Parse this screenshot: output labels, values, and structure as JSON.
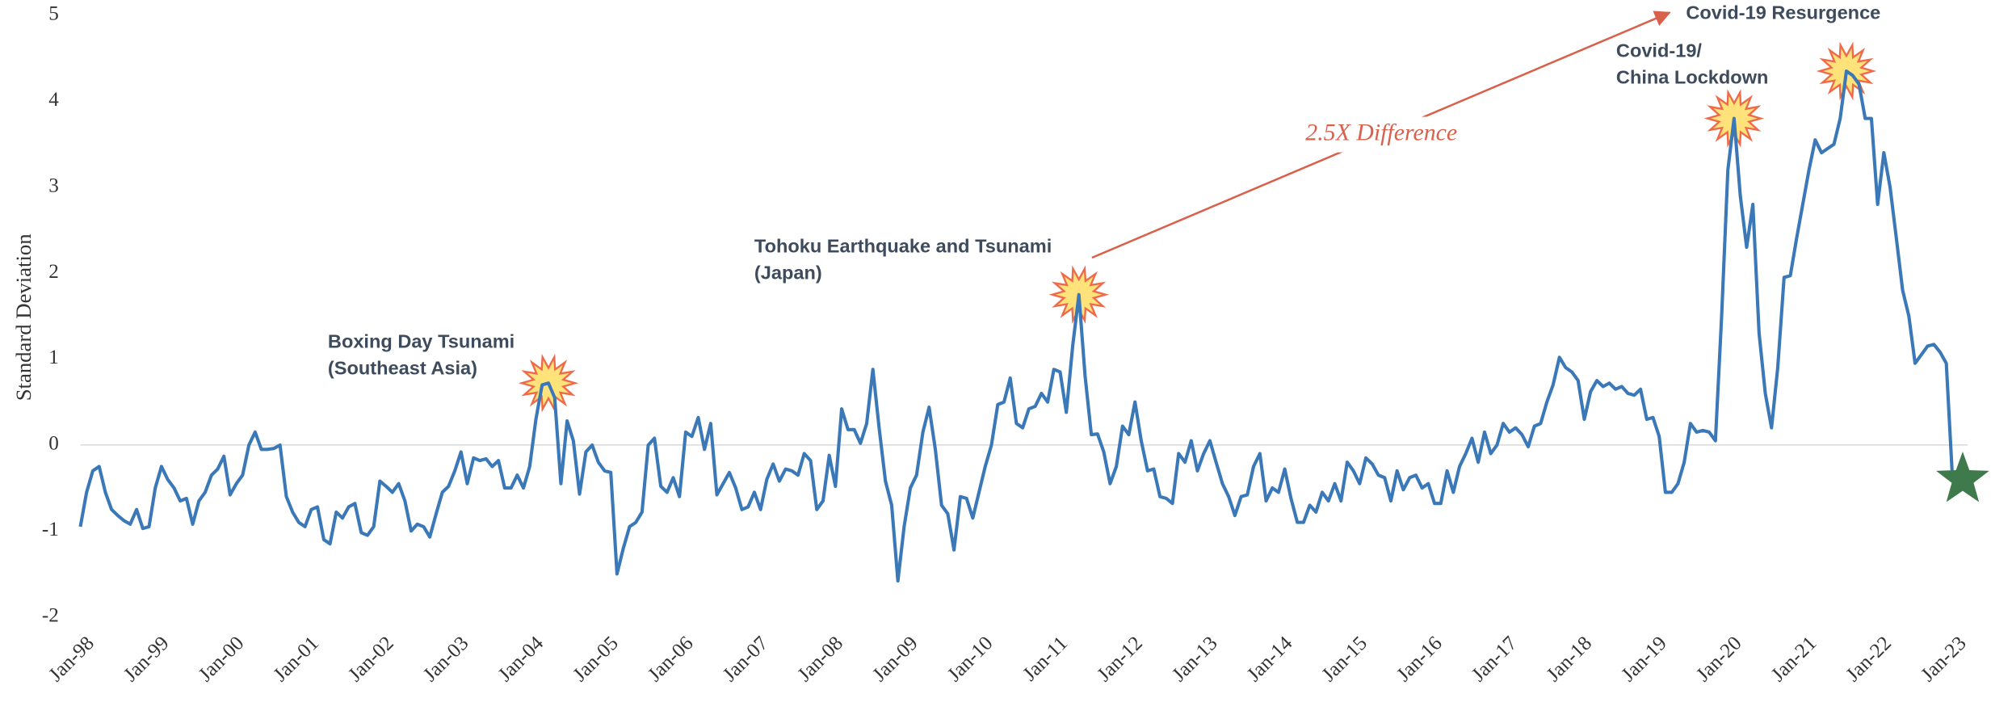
{
  "chart_data": {
    "type": "line",
    "y_label": "Standard Deviation",
    "ylim": [
      -2,
      5
    ],
    "yticks": [
      -2,
      -1,
      0,
      1,
      2,
      3,
      4,
      5
    ],
    "color": "#3a78b8",
    "annotations": [
      {
        "lines": [
          "Boxing Day Tsunami",
          "(Southeast Asia)"
        ]
      },
      {
        "lines": [
          "Tohoku Earthquake and Tsunami",
          "(Japan)"
        ]
      },
      {
        "lines": [
          "Covid-19/",
          "China Lockdown"
        ]
      },
      {
        "lines": [
          "Covid-19 Resurgence"
        ]
      },
      {
        "lines": [
          "2.5X Difference"
        ]
      }
    ],
    "categories": [
      "Jan-98",
      null,
      null,
      null,
      null,
      null,
      null,
      null,
      null,
      null,
      null,
      null,
      "Jan-99",
      null,
      null,
      null,
      null,
      null,
      null,
      null,
      null,
      null,
      null,
      null,
      "Jan-00",
      null,
      null,
      null,
      null,
      null,
      null,
      null,
      null,
      null,
      null,
      null,
      "Jan-01",
      null,
      null,
      null,
      null,
      null,
      null,
      null,
      null,
      null,
      null,
      null,
      "Jan-02",
      null,
      null,
      null,
      null,
      null,
      null,
      null,
      null,
      null,
      null,
      null,
      "Jan-03",
      null,
      null,
      null,
      null,
      null,
      null,
      null,
      null,
      null,
      null,
      null,
      "Jan-04",
      null,
      null,
      null,
      null,
      null,
      null,
      null,
      null,
      null,
      null,
      null,
      "Jan-05",
      null,
      null,
      null,
      null,
      null,
      null,
      null,
      null,
      null,
      null,
      null,
      "Jan-06",
      null,
      null,
      null,
      null,
      null,
      null,
      null,
      null,
      null,
      null,
      null,
      "Jan-07",
      null,
      null,
      null,
      null,
      null,
      null,
      null,
      null,
      null,
      null,
      null,
      "Jan-08",
      null,
      null,
      null,
      null,
      null,
      null,
      null,
      null,
      null,
      null,
      null,
      "Jan-09",
      null,
      null,
      null,
      null,
      null,
      null,
      null,
      null,
      null,
      null,
      null,
      "Jan-10",
      null,
      null,
      null,
      null,
      null,
      null,
      null,
      null,
      null,
      null,
      null,
      "Jan-11",
      null,
      null,
      null,
      null,
      null,
      null,
      null,
      null,
      null,
      null,
      null,
      "Jan-12",
      null,
      null,
      null,
      null,
      null,
      null,
      null,
      null,
      null,
      null,
      null,
      "Jan-13",
      null,
      null,
      null,
      null,
      null,
      null,
      null,
      null,
      null,
      null,
      null,
      "Jan-14",
      null,
      null,
      null,
      null,
      null,
      null,
      null,
      null,
      null,
      null,
      null,
      "Jan-15",
      null,
      null,
      null,
      null,
      null,
      null,
      null,
      null,
      null,
      null,
      null,
      "Jan-16",
      null,
      null,
      null,
      null,
      null,
      null,
      null,
      null,
      null,
      null,
      null,
      "Jan-17",
      null,
      null,
      null,
      null,
      null,
      null,
      null,
      null,
      null,
      null,
      null,
      "Jan-18",
      null,
      null,
      null,
      null,
      null,
      null,
      null,
      null,
      null,
      null,
      null,
      "Jan-19",
      null,
      null,
      null,
      null,
      null,
      null,
      null,
      null,
      null,
      null,
      null,
      "Jan-20",
      null,
      null,
      null,
      null,
      null,
      null,
      null,
      null,
      null,
      null,
      null,
      "Jan-21",
      null,
      null,
      null,
      null,
      null,
      null,
      null,
      null,
      null,
      null,
      null,
      "Jan-22",
      null,
      null,
      null,
      null,
      null,
      null,
      null,
      null,
      null,
      null,
      null,
      "Jan-23"
    ],
    "values": [
      -0.95,
      -0.55,
      -0.3,
      -0.25,
      -0.55,
      -0.75,
      -0.82,
      -0.88,
      -0.92,
      -0.75,
      -0.97,
      -0.95,
      -0.5,
      -0.25,
      -0.4,
      -0.5,
      -0.65,
      -0.62,
      -0.92,
      -0.65,
      -0.55,
      -0.35,
      -0.28,
      -0.13,
      -0.58,
      -0.45,
      -0.35,
      0.0,
      0.15,
      -0.05,
      -0.05,
      -0.04,
      0.0,
      -0.6,
      -0.78,
      -0.9,
      -0.95,
      -0.75,
      -0.72,
      -1.1,
      -1.15,
      -0.78,
      -0.85,
      -0.72,
      -0.68,
      -1.02,
      -1.05,
      -0.95,
      -0.42,
      -0.48,
      -0.55,
      -0.45,
      -0.65,
      -1.0,
      -0.92,
      -0.95,
      -1.07,
      -0.8,
      -0.55,
      -0.48,
      -0.3,
      -0.08,
      -0.45,
      -0.15,
      -0.18,
      -0.16,
      -0.25,
      -0.18,
      -0.5,
      -0.5,
      -0.35,
      -0.5,
      -0.25,
      0.3,
      0.7,
      0.72,
      0.55,
      -0.45,
      0.28,
      0.05,
      -0.57,
      -0.08,
      0.0,
      -0.2,
      -0.3,
      -0.32,
      -1.5,
      -1.2,
      -0.95,
      -0.9,
      -0.78,
      0.0,
      0.08,
      -0.48,
      -0.55,
      -0.38,
      -0.6,
      0.15,
      0.1,
      0.32,
      -0.05,
      0.25,
      -0.58,
      -0.45,
      -0.32,
      -0.5,
      -0.75,
      -0.72,
      -0.55,
      -0.75,
      -0.4,
      -0.22,
      -0.42,
      -0.28,
      -0.3,
      -0.35,
      -0.1,
      -0.18,
      -0.75,
      -0.65,
      -0.12,
      -0.48,
      0.42,
      0.18,
      0.18,
      0.02,
      0.25,
      0.88,
      0.2,
      -0.42,
      -0.7,
      -1.58,
      -0.95,
      -0.5,
      -0.35,
      0.15,
      0.44,
      -0.05,
      -0.7,
      -0.8,
      -1.22,
      -0.6,
      -0.62,
      -0.85,
      -0.55,
      -0.25,
      0.0,
      0.47,
      0.5,
      0.78,
      0.25,
      0.2,
      0.42,
      0.45,
      0.6,
      0.5,
      0.88,
      0.85,
      0.38,
      1.15,
      1.75,
      0.8,
      0.12,
      0.13,
      -0.08,
      -0.45,
      -0.25,
      0.22,
      0.12,
      0.5,
      0.05,
      -0.3,
      -0.28,
      -0.6,
      -0.62,
      -0.68,
      -0.1,
      -0.2,
      0.05,
      -0.3,
      -0.1,
      0.05,
      -0.2,
      -0.45,
      -0.6,
      -0.82,
      -0.6,
      -0.58,
      -0.25,
      -0.1,
      -0.65,
      -0.5,
      -0.55,
      -0.28,
      -0.62,
      -0.9,
      -0.9,
      -0.7,
      -0.78,
      -0.55,
      -0.65,
      -0.45,
      -0.65,
      -0.2,
      -0.3,
      -0.45,
      -0.15,
      -0.22,
      -0.35,
      -0.38,
      -0.65,
      -0.3,
      -0.52,
      -0.38,
      -0.35,
      -0.5,
      -0.45,
      -0.68,
      -0.68,
      -0.3,
      -0.55,
      -0.25,
      -0.1,
      0.08,
      -0.2,
      0.15,
      -0.1,
      0.0,
      0.25,
      0.15,
      0.2,
      0.12,
      -0.02,
      0.22,
      0.25,
      0.5,
      0.7,
      1.02,
      0.9,
      0.85,
      0.75,
      0.3,
      0.62,
      0.75,
      0.68,
      0.72,
      0.65,
      0.68,
      0.6,
      0.58,
      0.65,
      0.3,
      0.32,
      0.1,
      -0.55,
      -0.55,
      -0.45,
      -0.2,
      0.25,
      0.15,
      0.17,
      0.15,
      0.05,
      1.5,
      3.2,
      3.8,
      2.9,
      2.3,
      2.8,
      1.3,
      0.6,
      0.2,
      0.9,
      1.95,
      1.97,
      2.4,
      2.8,
      3.2,
      3.55,
      3.4,
      3.45,
      3.5,
      3.8,
      4.35,
      4.3,
      4.2,
      3.8,
      3.8,
      2.8,
      3.4,
      3.0,
      2.4,
      1.8,
      1.5,
      0.95,
      1.05,
      1.15,
      1.17,
      1.08,
      0.95,
      -0.4
    ]
  }
}
